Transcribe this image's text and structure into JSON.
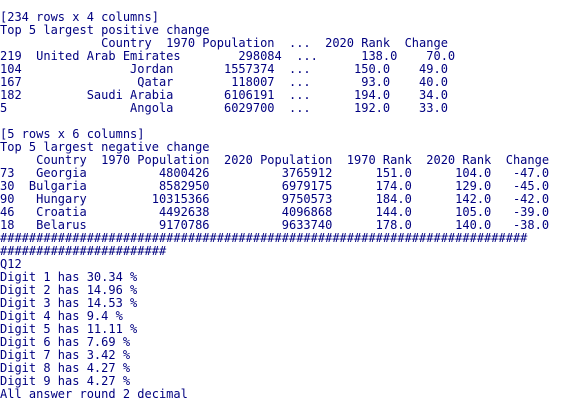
{
  "console": {
    "lines": [
      "[234 rows x 4 columns]",
      "Top 5 largest positive change",
      "              Country  1970 Population  ...  2020 Rank  Change",
      "219  United Arab Emirates        298084  ...      138.0    70.0",
      "104               Jordan       1557374  ...      150.0    49.0",
      "167                Qatar        118007  ...       93.0    40.0",
      "182         Saudi Arabia       6106191  ...      194.0    34.0",
      "5                 Angola       6029700  ...      192.0    33.0",
      "",
      "[5 rows x 6 columns]",
      "Top 5 largest negative change",
      "     Country  1970 Population  2020 Population  1970 Rank  2020 Rank  Change",
      "73   Georgia          4800426          3765912      151.0      104.0   -47.0",
      "30  Bulgaria          8582950          6979175      174.0      129.0   -45.0",
      "90   Hungary         10315366          9750573      184.0      142.0   -42.0",
      "46   Croatia          4492638          4096868      144.0      105.0   -39.0",
      "18   Belarus          9170786          9633740      178.0      140.0   -38.0",
      "#########################################################################",
      "#######################",
      "Q12",
      "Digit 1 has 30.34 %",
      "Digit 2 has 14.96 %",
      "Digit 3 has 14.53 %",
      "Digit 4 has 9.4 %",
      "Digit 5 has 11.11 %",
      "Digit 6 has 7.69 %",
      "Digit 7 has 3.42 %",
      "Digit 8 has 4.27 %",
      "Digit 9 has 4.27 %",
      "All answer round 2 decimal"
    ]
  }
}
